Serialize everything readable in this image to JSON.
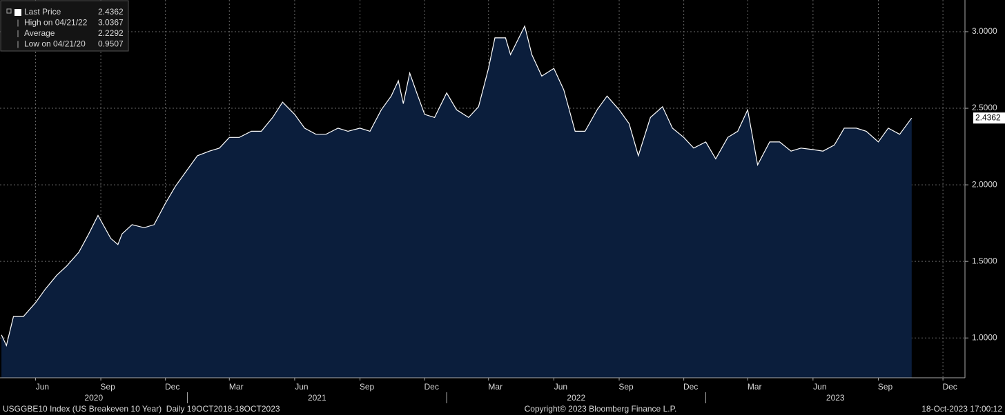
{
  "chart_data": {
    "type": "area",
    "legend": [
      {
        "label": "Last Price",
        "value": 2.4362
      },
      {
        "label": "High on 04/21/22",
        "value": 3.0367
      },
      {
        "label": "Average",
        "value": 2.2292
      },
      {
        "label": "Low on 04/21/20",
        "value": 0.9507
      }
    ],
    "x": [
      "2020-04-14",
      "2020-04-21",
      "2020-05-01",
      "2020-05-15",
      "2020-06-01",
      "2020-06-15",
      "2020-07-01",
      "2020-07-15",
      "2020-08-01",
      "2020-08-15",
      "2020-08-28",
      "2020-09-15",
      "2020-09-25",
      "2020-10-01",
      "2020-10-15",
      "2020-11-01",
      "2020-11-15",
      "2020-12-01",
      "2020-12-15",
      "2021-01-01",
      "2021-01-15",
      "2021-02-01",
      "2021-02-15",
      "2021-03-01",
      "2021-03-15",
      "2021-04-01",
      "2021-04-15",
      "2021-05-01",
      "2021-05-15",
      "2021-06-01",
      "2021-06-15",
      "2021-07-01",
      "2021-07-15",
      "2021-08-01",
      "2021-08-15",
      "2021-09-01",
      "2021-09-15",
      "2021-10-01",
      "2021-10-15",
      "2021-10-25",
      "2021-11-01",
      "2021-11-10",
      "2021-11-20",
      "2021-12-01",
      "2021-12-15",
      "2022-01-01",
      "2022-01-15",
      "2022-02-01",
      "2022-02-15",
      "2022-03-01",
      "2022-03-10",
      "2022-03-25",
      "2022-04-01",
      "2022-04-21",
      "2022-05-01",
      "2022-05-15",
      "2022-06-01",
      "2022-06-15",
      "2022-07-01",
      "2022-07-15",
      "2022-08-01",
      "2022-08-15",
      "2022-09-01",
      "2022-09-15",
      "2022-09-28",
      "2022-10-15",
      "2022-11-01",
      "2022-11-15",
      "2022-12-01",
      "2022-12-15",
      "2023-01-01",
      "2023-01-15",
      "2023-02-01",
      "2023-02-15",
      "2023-03-01",
      "2023-03-15",
      "2023-04-01",
      "2023-04-15",
      "2023-05-01",
      "2023-05-15",
      "2023-06-01",
      "2023-06-15",
      "2023-07-01",
      "2023-07-15",
      "2023-08-01",
      "2023-08-15",
      "2023-09-01",
      "2023-09-15",
      "2023-10-01",
      "2023-10-18"
    ],
    "series": [
      {
        "color": "#ffffff",
        "fill": "#0b1e3c",
        "values": [
          1.02,
          0.9507,
          1.14,
          1.14,
          1.23,
          1.32,
          1.41,
          1.47,
          1.56,
          1.68,
          1.8,
          1.65,
          1.61,
          1.68,
          1.74,
          1.72,
          1.74,
          1.88,
          1.99,
          2.1,
          2.19,
          2.22,
          2.24,
          2.31,
          2.31,
          2.35,
          2.35,
          2.44,
          2.54,
          2.46,
          2.37,
          2.33,
          2.33,
          2.37,
          2.35,
          2.37,
          2.35,
          2.49,
          2.58,
          2.68,
          2.53,
          2.73,
          2.6,
          2.46,
          2.44,
          2.6,
          2.49,
          2.44,
          2.51,
          2.76,
          2.96,
          2.96,
          2.85,
          3.0367,
          2.85,
          2.71,
          2.76,
          2.62,
          2.35,
          2.35,
          2.49,
          2.58,
          2.49,
          2.4,
          2.19,
          2.44,
          2.51,
          2.37,
          2.31,
          2.24,
          2.28,
          2.17,
          2.31,
          2.35,
          2.49,
          2.13,
          2.28,
          2.28,
          2.22,
          2.24,
          2.23,
          2.22,
          2.26,
          2.37,
          2.37,
          2.35,
          2.28,
          2.37,
          2.33,
          2.4362
        ]
      }
    ],
    "xlim": [
      "2020-04-12",
      "2024-01-01"
    ],
    "xticks": [
      {
        "value": "2020-06-01",
        "label": "Jun"
      },
      {
        "value": "2020-09-01",
        "label": "Sep"
      },
      {
        "value": "2020-12-01",
        "label": "Dec"
      },
      {
        "value": "2021-03-01",
        "label": "Mar"
      },
      {
        "value": "2021-06-01",
        "label": "Jun"
      },
      {
        "value": "2021-09-01",
        "label": "Sep"
      },
      {
        "value": "2021-12-01",
        "label": "Dec"
      },
      {
        "value": "2022-03-01",
        "label": "Mar"
      },
      {
        "value": "2022-06-01",
        "label": "Jun"
      },
      {
        "value": "2022-09-01",
        "label": "Sep"
      },
      {
        "value": "2022-12-01",
        "label": "Dec"
      },
      {
        "value": "2023-03-01",
        "label": "Mar"
      },
      {
        "value": "2023-06-01",
        "label": "Jun"
      },
      {
        "value": "2023-09-01",
        "label": "Sep"
      },
      {
        "value": "2023-12-01",
        "label": "Dec"
      }
    ],
    "years": [
      "2020",
      "2021",
      "2022",
      "2023"
    ],
    "ylim": [
      0.74,
      3.207
    ],
    "yticks": [
      {
        "value": 1,
        "label": "1.0000"
      },
      {
        "value": 1.5,
        "label": "1.5000"
      },
      {
        "value": 2,
        "label": "2.0000"
      },
      {
        "value": 2.5,
        "label": "2.5000"
      },
      {
        "value": 3,
        "label": "3.0000"
      }
    ],
    "grid": true,
    "footer": {
      "left": "USGGBE10 Index (US Breakeven 10 Year)  Daily 19OCT2018-18OCT2023",
      "center": "Copyright© 2023 Bloomberg Finance L.P.",
      "right": "18-Oct-2023 17:00:12"
    }
  }
}
